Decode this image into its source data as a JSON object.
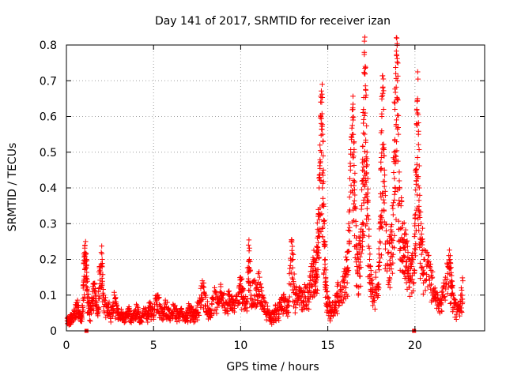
{
  "chart_data": {
    "type": "scatter",
    "title": "Day 141 of 2017, SRMTID for receiver izan",
    "xlabel": "GPS time / hours",
    "ylabel": "SRMTID / TECUs",
    "xlim": [
      0,
      24
    ],
    "ylim": [
      0,
      0.8
    ],
    "xticks": [
      0,
      5,
      10,
      15,
      20
    ],
    "xtick_labels": [
      "0",
      "5",
      "10",
      "15",
      "20"
    ],
    "yticks": [
      0,
      0.1,
      0.2,
      0.3,
      0.4,
      0.5,
      0.6,
      0.7,
      0.8
    ],
    "ytick_labels": [
      "0",
      "0.1",
      "0.2",
      "0.3",
      "0.4",
      "0.5",
      "0.6",
      "0.7",
      "0.8"
    ],
    "grid": true,
    "marker": "+",
    "colors": {
      "series": "#ff0000",
      "grid": "#a0a0a0",
      "axis": "#000000"
    },
    "baseline_points": [
      {
        "x": 1.15,
        "y": 0.0
      },
      {
        "x": 19.95,
        "y": 0.0
      }
    ],
    "series": [
      {
        "name": "SRMTID",
        "description": "dense + markers, approximate envelope of the measured points",
        "points": [
          [
            0.05,
            0.035
          ],
          [
            0.15,
            0.03
          ],
          [
            0.25,
            0.045
          ],
          [
            0.35,
            0.04
          ],
          [
            0.45,
            0.06
          ],
          [
            0.55,
            0.07
          ],
          [
            0.65,
            0.08
          ],
          [
            0.75,
            0.05
          ],
          [
            0.85,
            0.04
          ],
          [
            0.95,
            0.09
          ],
          [
            1.0,
            0.19
          ],
          [
            1.05,
            0.22
          ],
          [
            1.1,
            0.25
          ],
          [
            1.15,
            0.2
          ],
          [
            1.2,
            0.12
          ],
          [
            1.3,
            0.08
          ],
          [
            1.4,
            0.06
          ],
          [
            1.5,
            0.11
          ],
          [
            1.6,
            0.13
          ],
          [
            1.7,
            0.09
          ],
          [
            1.8,
            0.05
          ],
          [
            1.9,
            0.18
          ],
          [
            2.0,
            0.22
          ],
          [
            2.05,
            0.2
          ],
          [
            2.15,
            0.1
          ],
          [
            2.3,
            0.07
          ],
          [
            2.45,
            0.08
          ],
          [
            2.6,
            0.05
          ],
          [
            2.75,
            0.1
          ],
          [
            2.9,
            0.07
          ],
          [
            3.0,
            0.05
          ],
          [
            3.15,
            0.06
          ],
          [
            3.3,
            0.04
          ],
          [
            3.45,
            0.05
          ],
          [
            3.6,
            0.06
          ],
          [
            3.75,
            0.04
          ],
          [
            3.9,
            0.05
          ],
          [
            4.05,
            0.07
          ],
          [
            4.2,
            0.04
          ],
          [
            4.35,
            0.05
          ],
          [
            4.5,
            0.06
          ],
          [
            4.65,
            0.05
          ],
          [
            4.8,
            0.08
          ],
          [
            4.95,
            0.06
          ],
          [
            5.1,
            0.09
          ],
          [
            5.25,
            0.1
          ],
          [
            5.4,
            0.07
          ],
          [
            5.55,
            0.05
          ],
          [
            5.7,
            0.08
          ],
          [
            5.85,
            0.06
          ],
          [
            6.0,
            0.05
          ],
          [
            6.15,
            0.07
          ],
          [
            6.3,
            0.06
          ],
          [
            6.45,
            0.05
          ],
          [
            6.6,
            0.06
          ],
          [
            6.75,
            0.04
          ],
          [
            6.9,
            0.05
          ],
          [
            7.05,
            0.07
          ],
          [
            7.2,
            0.06
          ],
          [
            7.35,
            0.05
          ],
          [
            7.5,
            0.07
          ],
          [
            7.65,
            0.08
          ],
          [
            7.8,
            0.14
          ],
          [
            7.95,
            0.1
          ],
          [
            8.1,
            0.07
          ],
          [
            8.25,
            0.06
          ],
          [
            8.4,
            0.09
          ],
          [
            8.55,
            0.11
          ],
          [
            8.7,
            0.08
          ],
          [
            8.85,
            0.13
          ],
          [
            9.0,
            0.1
          ],
          [
            9.15,
            0.08
          ],
          [
            9.3,
            0.11
          ],
          [
            9.45,
            0.09
          ],
          [
            9.6,
            0.08
          ],
          [
            9.75,
            0.1
          ],
          [
            9.9,
            0.12
          ],
          [
            10.0,
            0.15
          ],
          [
            10.1,
            0.12
          ],
          [
            10.2,
            0.09
          ],
          [
            10.35,
            0.08
          ],
          [
            10.45,
            0.24
          ],
          [
            10.5,
            0.2
          ],
          [
            10.6,
            0.1
          ],
          [
            10.75,
            0.14
          ],
          [
            10.9,
            0.12
          ],
          [
            11.0,
            0.16
          ],
          [
            11.1,
            0.13
          ],
          [
            11.25,
            0.1
          ],
          [
            11.4,
            0.08
          ],
          [
            11.55,
            0.06
          ],
          [
            11.7,
            0.04
          ],
          [
            11.85,
            0.05
          ],
          [
            12.0,
            0.07
          ],
          [
            12.15,
            0.06
          ],
          [
            12.3,
            0.08
          ],
          [
            12.45,
            0.1
          ],
          [
            12.6,
            0.09
          ],
          [
            12.75,
            0.08
          ],
          [
            12.9,
            0.25
          ],
          [
            13.0,
            0.2
          ],
          [
            13.1,
            0.12
          ],
          [
            13.25,
            0.1
          ],
          [
            13.4,
            0.11
          ],
          [
            13.55,
            0.1
          ],
          [
            13.7,
            0.12
          ],
          [
            13.85,
            0.11
          ],
          [
            14.0,
            0.15
          ],
          [
            14.1,
            0.18
          ],
          [
            14.2,
            0.2
          ],
          [
            14.3,
            0.17
          ],
          [
            14.35,
            0.22
          ],
          [
            14.4,
            0.26
          ],
          [
            14.45,
            0.32
          ],
          [
            14.5,
            0.4
          ],
          [
            14.55,
            0.52
          ],
          [
            14.6,
            0.6
          ],
          [
            14.65,
            0.64
          ],
          [
            14.7,
            0.55
          ],
          [
            14.75,
            0.45
          ],
          [
            14.8,
            0.3
          ],
          [
            14.85,
            0.2
          ],
          [
            14.9,
            0.12
          ],
          [
            15.0,
            0.09
          ],
          [
            15.1,
            0.07
          ],
          [
            15.2,
            0.06
          ],
          [
            15.35,
            0.08
          ],
          [
            15.5,
            0.1
          ],
          [
            15.6,
            0.13
          ],
          [
            15.75,
            0.11
          ],
          [
            15.9,
            0.14
          ],
          [
            16.0,
            0.16
          ],
          [
            16.1,
            0.2
          ],
          [
            16.2,
            0.3
          ],
          [
            16.3,
            0.45
          ],
          [
            16.4,
            0.55
          ],
          [
            16.45,
            0.59
          ],
          [
            16.5,
            0.5
          ],
          [
            16.55,
            0.38
          ],
          [
            16.65,
            0.24
          ],
          [
            16.75,
            0.2
          ],
          [
            16.85,
            0.26
          ],
          [
            16.95,
            0.35
          ],
          [
            17.0,
            0.48
          ],
          [
            17.05,
            0.62
          ],
          [
            17.1,
            0.72
          ],
          [
            17.15,
            0.74
          ],
          [
            17.2,
            0.66
          ],
          [
            17.25,
            0.5
          ],
          [
            17.3,
            0.36
          ],
          [
            17.4,
            0.2
          ],
          [
            17.5,
            0.14
          ],
          [
            17.6,
            0.12
          ],
          [
            17.75,
            0.15
          ],
          [
            17.9,
            0.18
          ],
          [
            18.0,
            0.3
          ],
          [
            18.05,
            0.45
          ],
          [
            18.1,
            0.6
          ],
          [
            18.15,
            0.68
          ],
          [
            18.2,
            0.62
          ],
          [
            18.25,
            0.45
          ],
          [
            18.35,
            0.28
          ],
          [
            18.5,
            0.22
          ],
          [
            18.6,
            0.26
          ],
          [
            18.7,
            0.35
          ],
          [
            18.8,
            0.5
          ],
          [
            18.85,
            0.62
          ],
          [
            18.9,
            0.72
          ],
          [
            18.95,
            0.77
          ],
          [
            19.0,
            0.7
          ],
          [
            19.05,
            0.55
          ],
          [
            19.1,
            0.42
          ],
          [
            19.2,
            0.35
          ],
          [
            19.3,
            0.3
          ],
          [
            19.4,
            0.27
          ],
          [
            19.5,
            0.25
          ],
          [
            19.6,
            0.22
          ],
          [
            19.7,
            0.2
          ],
          [
            19.8,
            0.18
          ],
          [
            19.9,
            0.2
          ],
          [
            20.0,
            0.3
          ],
          [
            20.05,
            0.45
          ],
          [
            20.1,
            0.58
          ],
          [
            20.15,
            0.65
          ],
          [
            20.2,
            0.55
          ],
          [
            20.25,
            0.4
          ],
          [
            20.35,
            0.3
          ],
          [
            20.45,
            0.25
          ],
          [
            20.55,
            0.2
          ],
          [
            20.7,
            0.22
          ],
          [
            20.85,
            0.18
          ],
          [
            21.0,
            0.15
          ],
          [
            21.15,
            0.12
          ],
          [
            21.3,
            0.1
          ],
          [
            21.45,
            0.08
          ],
          [
            21.6,
            0.12
          ],
          [
            21.75,
            0.15
          ],
          [
            21.9,
            0.18
          ],
          [
            22.0,
            0.2
          ],
          [
            22.1,
            0.14
          ],
          [
            22.2,
            0.1
          ],
          [
            22.35,
            0.08
          ],
          [
            22.5,
            0.06
          ],
          [
            22.65,
            0.1
          ],
          [
            22.75,
            0.14
          ]
        ]
      }
    ]
  }
}
